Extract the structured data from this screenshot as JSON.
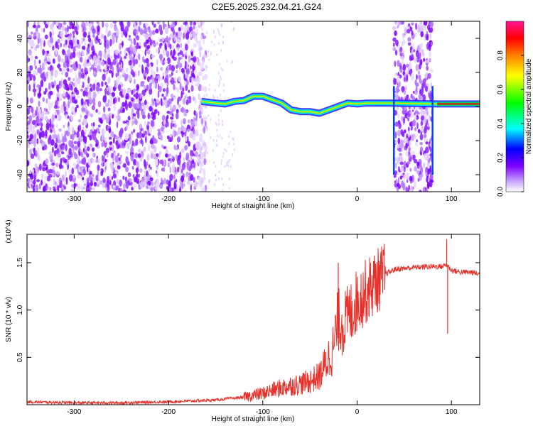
{
  "title": "C2E5.2025.232.04.21.G24",
  "chart_data": [
    {
      "type": "heatmap",
      "xlabel": "Height of straight line (km)",
      "ylabel": "Frequency (Hz)",
      "xlim": [
        -350,
        130
      ],
      "ylim": [
        -50,
        50
      ],
      "xticks": [
        -300,
        -200,
        -100,
        0,
        100
      ],
      "yticks": [
        -40,
        -20,
        0,
        20,
        40
      ],
      "grid": false,
      "colorbar": {
        "label": "Normalized spectral amplitude",
        "range": [
          0,
          1
        ],
        "ticks": [
          "0.0",
          "0.2",
          "0.4",
          "0.6",
          "0.8"
        ],
        "colors": [
          "#ffffff",
          "#d9b3ff",
          "#8000ff",
          "#0000ff",
          "#00ffff",
          "#00ff00",
          "#ffff00",
          "#ff8000",
          "#ff0000"
        ]
      },
      "noise_regions": [
        [
          -350,
          -160
        ],
        [
          39,
          80
        ]
      ],
      "signal_trace": {
        "x": [
          -165,
          -150,
          -140,
          -130,
          -120,
          -110,
          -100,
          -90,
          -80,
          -70,
          -60,
          -50,
          -40,
          -30,
          -20,
          -10,
          0,
          10,
          20,
          35,
          85,
          100,
          130
        ],
        "y": [
          3,
          2,
          1.5,
          3,
          3.5,
          6,
          6,
          4,
          2,
          -2,
          -3,
          -3,
          -4,
          -2,
          0,
          2,
          1.5,
          2,
          2,
          2,
          1.5,
          1.5,
          1.5
        ]
      }
    },
    {
      "type": "line",
      "xlabel": "Height of straight line (km)",
      "ylabel": "SNR (10 * v/v)",
      "y_multiplier": "(x10^4)",
      "xlim": [
        -350,
        130
      ],
      "ylim": [
        0,
        1.8
      ],
      "xticks": [
        -300,
        -200,
        -100,
        0,
        100
      ],
      "yticks": [
        "0.5",
        "1.0",
        "1.5"
      ],
      "ytick_values": [
        0.5,
        1.0,
        1.5
      ],
      "color": "#e8302a",
      "series": [
        {
          "x": [
            -350,
            -300,
            -250,
            -200,
            -150,
            -120,
            -100,
            -80,
            -60,
            -50,
            -40,
            -30,
            -25,
            -20,
            -15,
            -10,
            -5,
            0,
            10,
            20,
            30,
            40,
            60,
            80,
            90,
            95,
            100,
            110,
            120,
            130
          ],
          "y": [
            0.03,
            0.02,
            0.02,
            0.03,
            0.05,
            0.08,
            0.12,
            0.18,
            0.22,
            0.25,
            0.3,
            0.5,
            0.6,
            0.9,
            0.85,
            0.92,
            1.0,
            1.1,
            1.2,
            1.3,
            1.38,
            1.43,
            1.45,
            1.46,
            1.46,
            1.48,
            1.42,
            1.4,
            1.4,
            1.38
          ]
        }
      ],
      "spikes": [
        {
          "x": -20,
          "y": 1.5
        },
        {
          "x": 95,
          "y": 1.75
        },
        {
          "x": 96,
          "y": 0.75
        }
      ]
    }
  ]
}
